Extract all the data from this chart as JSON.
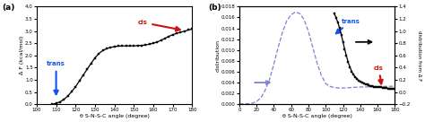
{
  "panel_a": {
    "x": [
      108,
      110,
      112,
      114,
      116,
      118,
      120,
      122,
      124,
      126,
      128,
      130,
      132,
      134,
      136,
      138,
      140,
      142,
      144,
      146,
      148,
      150,
      152,
      154,
      156,
      158,
      160,
      162,
      164,
      166,
      168,
      170,
      172,
      174,
      176,
      178,
      180
    ],
    "y": [
      0.0,
      0.04,
      0.1,
      0.2,
      0.34,
      0.52,
      0.72,
      0.96,
      1.2,
      1.44,
      1.68,
      1.9,
      2.08,
      2.2,
      2.28,
      2.33,
      2.36,
      2.38,
      2.39,
      2.39,
      2.39,
      2.39,
      2.4,
      2.41,
      2.43,
      2.46,
      2.5,
      2.55,
      2.62,
      2.7,
      2.78,
      2.85,
      2.9,
      2.95,
      2.99,
      3.04,
      3.08
    ],
    "xlabel": "θ S-N-S-C angle (degree)",
    "ylabel": "Δ F (kcal/mol)",
    "xlim": [
      100,
      180
    ],
    "ylim": [
      0,
      4
    ],
    "yticks": [
      0,
      0.5,
      1,
      1.5,
      2,
      2.5,
      3,
      3.5,
      4
    ],
    "xticks": [
      100,
      110,
      120,
      130,
      140,
      150,
      160,
      170,
      180
    ],
    "panel_label": "(a)"
  },
  "panel_b": {
    "x_dist": [
      0,
      5,
      10,
      15,
      20,
      25,
      30,
      35,
      40,
      45,
      50,
      55,
      60,
      65,
      70,
      75,
      80,
      85,
      90,
      95,
      100,
      105,
      110,
      115,
      120,
      125,
      130,
      135,
      140,
      145,
      150,
      155,
      160,
      165,
      170,
      175,
      180
    ],
    "y_dist": [
      0.0001,
      0.0001,
      0.00012,
      0.0002,
      0.0005,
      0.0012,
      0.0026,
      0.0046,
      0.0074,
      0.0105,
      0.0133,
      0.0154,
      0.0165,
      0.017,
      0.0167,
      0.0156,
      0.0134,
      0.0105,
      0.0076,
      0.0053,
      0.0038,
      0.0033,
      0.0031,
      0.003,
      0.003,
      0.00305,
      0.0031,
      0.00315,
      0.00318,
      0.0032,
      0.00322,
      0.00324,
      0.00326,
      0.00328,
      0.0033,
      0.00332,
      0.00333
    ],
    "x_dF": [
      110,
      112,
      114,
      116,
      118,
      120,
      122,
      124,
      126,
      128,
      130,
      132,
      134,
      136,
      138,
      140,
      142,
      144,
      146,
      148,
      150,
      152,
      154,
      156,
      158,
      160,
      162,
      164,
      166,
      168,
      170,
      172,
      174,
      176,
      178,
      180
    ],
    "y_dF": [
      1.28,
      1.22,
      1.14,
      1.05,
      0.94,
      0.82,
      0.7,
      0.59,
      0.49,
      0.41,
      0.34,
      0.29,
      0.25,
      0.22,
      0.19,
      0.17,
      0.15,
      0.14,
      0.13,
      0.12,
      0.11,
      0.1,
      0.1,
      0.09,
      0.09,
      0.08,
      0.08,
      0.08,
      0.07,
      0.07,
      0.07,
      0.06,
      0.06,
      0.06,
      0.06,
      0.05
    ],
    "xlabel": "θ S-N-S-C angle (degree)",
    "ylabel_left": "distribution",
    "ylabel_right": "distribution from Δ F",
    "xlim": [
      0,
      180
    ],
    "ylim_left": [
      0,
      0.018
    ],
    "ylim_right": [
      -0.2,
      1.4
    ],
    "yticks_left": [
      0,
      0.002,
      0.004,
      0.006,
      0.008,
      0.01,
      0.012,
      0.014,
      0.016,
      0.018
    ],
    "yticks_right": [
      -0.2,
      0,
      0.2,
      0.4,
      0.6,
      0.8,
      1.0,
      1.2,
      1.4
    ],
    "xticks": [
      0,
      20,
      40,
      60,
      80,
      100,
      120,
      140,
      160,
      180
    ],
    "panel_label": "(b)"
  },
  "line_color_a": "#000000",
  "line_color_dist": "#8080d0",
  "line_color_dF": "#000000",
  "marker": "s",
  "marker_size": 2.0,
  "trans_color_a": "#1155ee",
  "trans_color_b": "#1155ee",
  "cis_color_a": "#cc1111",
  "cis_color_b": "#cc1111",
  "arrow_color_black": "#000000",
  "arrow_color_purple": "#8080d0"
}
